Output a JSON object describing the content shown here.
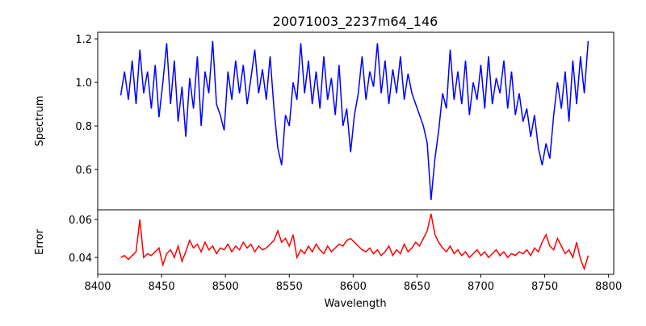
{
  "chart_data": [
    {
      "type": "line",
      "title": "20071003_2237m64_146",
      "xlabel": "",
      "ylabel": "Spectrum",
      "xlim": [
        8400,
        8804
      ],
      "ylim": [
        0.415,
        1.23
      ],
      "yticks": [
        0.6,
        0.8,
        1.0,
        1.2
      ],
      "ytick_labels": [
        "0.6",
        "0.8",
        "1.0",
        "1.2"
      ],
      "grid": false,
      "series": [
        {
          "name": "Spectrum",
          "color": "#0000ff",
          "x_start": 8418,
          "x_step": 3,
          "values": [
            0.94,
            1.05,
            0.92,
            1.1,
            0.9,
            1.15,
            0.95,
            1.05,
            0.88,
            1.08,
            0.84,
            1.0,
            1.18,
            0.9,
            1.1,
            0.82,
            0.98,
            0.75,
            1.02,
            0.88,
            1.12,
            0.8,
            1.05,
            0.95,
            1.19,
            0.9,
            0.85,
            0.78,
            1.05,
            0.92,
            1.1,
            0.95,
            1.08,
            0.9,
            1.02,
            1.15,
            0.95,
            1.06,
            0.92,
            1.12,
            0.88,
            0.7,
            0.62,
            0.85,
            0.8,
            1.0,
            0.92,
            1.18,
            0.95,
            1.1,
            0.9,
            1.05,
            0.88,
            1.12,
            0.92,
            1.02,
            0.85,
            1.08,
            0.8,
            0.88,
            0.68,
            0.85,
            0.95,
            1.12,
            0.92,
            1.05,
            0.98,
            1.18,
            0.95,
            1.1,
            0.9,
            1.06,
            0.95,
            1.12,
            0.92,
            1.04,
            0.95,
            0.9,
            0.85,
            0.8,
            0.72,
            0.46,
            0.65,
            0.78,
            0.95,
            0.88,
            1.15,
            0.92,
            1.05,
            0.9,
            1.1,
            0.85,
            1.0,
            0.92,
            1.08,
            0.88,
            1.12,
            0.9,
            1.02,
            0.95,
            1.1,
            0.88,
            1.05,
            0.85,
            0.95,
            0.82,
            0.88,
            0.75,
            0.85,
            0.7,
            0.62,
            0.72,
            0.65,
            0.85,
            1.0,
            0.88,
            1.05,
            0.82,
            1.1,
            0.9,
            1.12,
            0.95,
            1.19
          ]
        }
      ]
    },
    {
      "type": "line",
      "title": "",
      "xlabel": "Wavelength",
      "ylabel": "Error",
      "xlim": [
        8400,
        8804
      ],
      "ylim": [
        0.0311,
        0.0651
      ],
      "xticks": [
        8400,
        8450,
        8500,
        8550,
        8600,
        8650,
        8700,
        8750,
        8800
      ],
      "xtick_labels": [
        "8400",
        "8450",
        "8500",
        "8550",
        "8600",
        "8650",
        "8700",
        "8750",
        "8800"
      ],
      "yticks": [
        0.04,
        0.06
      ],
      "ytick_labels": [
        "0.04",
        "0.06"
      ],
      "grid": false,
      "series": [
        {
          "name": "Error",
          "color": "#ff0000",
          "x_start": 8418,
          "x_step": 3,
          "values": [
            0.04,
            0.041,
            0.039,
            0.041,
            0.043,
            0.06,
            0.04,
            0.042,
            0.041,
            0.043,
            0.045,
            0.036,
            0.042,
            0.044,
            0.04,
            0.046,
            0.038,
            0.043,
            0.049,
            0.045,
            0.047,
            0.043,
            0.048,
            0.044,
            0.046,
            0.042,
            0.045,
            0.044,
            0.047,
            0.043,
            0.046,
            0.044,
            0.048,
            0.045,
            0.047,
            0.043,
            0.046,
            0.044,
            0.045,
            0.047,
            0.049,
            0.054,
            0.048,
            0.05,
            0.046,
            0.052,
            0.04,
            0.044,
            0.042,
            0.046,
            0.043,
            0.047,
            0.044,
            0.042,
            0.046,
            0.043,
            0.045,
            0.047,
            0.046,
            0.049,
            0.05,
            0.048,
            0.046,
            0.044,
            0.043,
            0.045,
            0.042,
            0.044,
            0.041,
            0.043,
            0.046,
            0.041,
            0.044,
            0.042,
            0.047,
            0.043,
            0.045,
            0.048,
            0.046,
            0.05,
            0.054,
            0.063,
            0.052,
            0.048,
            0.045,
            0.043,
            0.046,
            0.042,
            0.044,
            0.041,
            0.043,
            0.04,
            0.042,
            0.044,
            0.041,
            0.043,
            0.04,
            0.042,
            0.044,
            0.041,
            0.043,
            0.04,
            0.042,
            0.041,
            0.043,
            0.042,
            0.044,
            0.041,
            0.045,
            0.043,
            0.048,
            0.052,
            0.046,
            0.044,
            0.05,
            0.046,
            0.042,
            0.044,
            0.04,
            0.048,
            0.039,
            0.034,
            0.041
          ]
        }
      ]
    }
  ]
}
